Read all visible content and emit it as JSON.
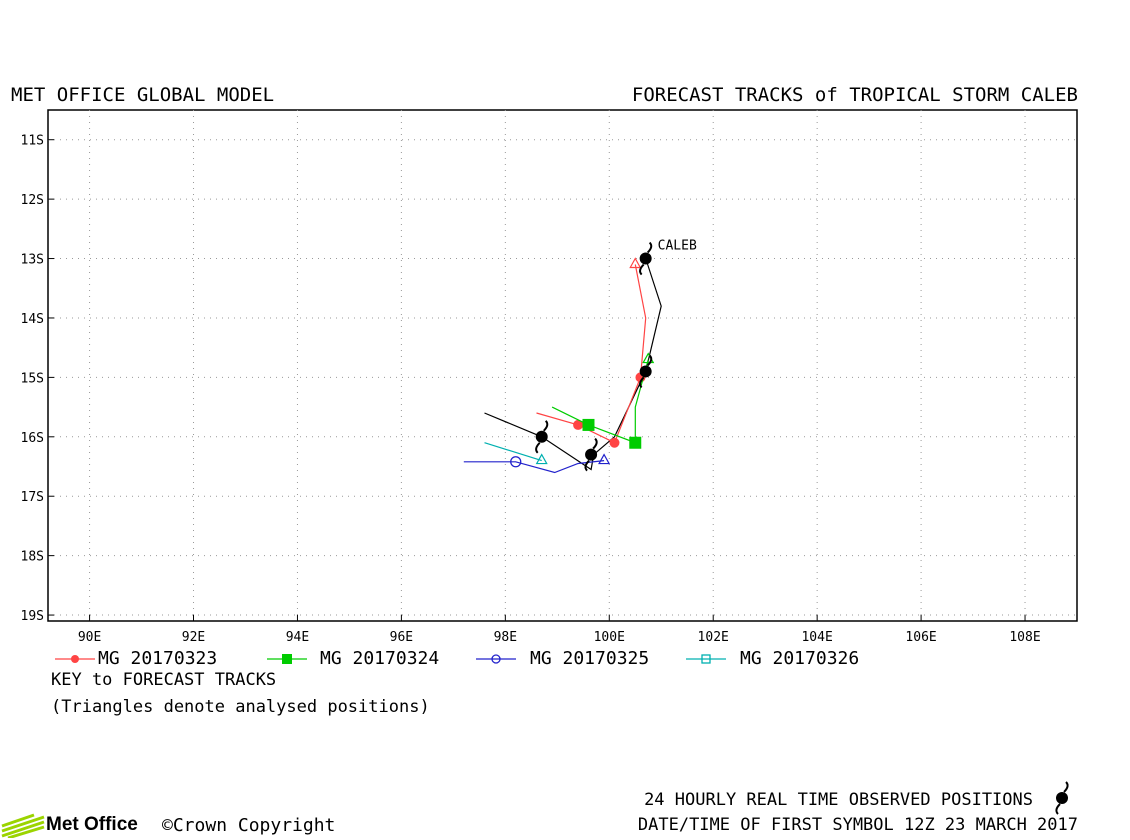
{
  "header": {
    "left": "MET OFFICE GLOBAL MODEL",
    "right": "FORECAST TRACKS of TROPICAL STORM CALEB"
  },
  "map": {
    "lat_labels": [
      "11S",
      "12S",
      "13S",
      "14S",
      "15S",
      "16S",
      "17S",
      "18S",
      "19S"
    ],
    "lon_labels": [
      "90E",
      "92E",
      "94E",
      "96E",
      "98E",
      "100E",
      "102E",
      "104E",
      "106E",
      "108E"
    ],
    "lon_range": [
      89.2,
      109.0
    ],
    "lat_range": [
      -19.1,
      -10.5
    ],
    "grid": true,
    "storm_label": "CALEB",
    "observed_track": [
      [
        100.7,
        -13.0
      ],
      [
        101.0,
        -13.8
      ],
      [
        100.7,
        -14.9
      ],
      [
        100.1,
        -16.0
      ],
      [
        99.7,
        -16.3
      ],
      [
        99.65,
        -16.55
      ],
      [
        98.7,
        -16.0
      ],
      [
        97.6,
        -15.6
      ]
    ],
    "observed_symbols": [
      [
        100.7,
        -13.0
      ],
      [
        100.7,
        -14.9
      ],
      [
        99.65,
        -16.3
      ],
      [
        98.7,
        -16.0
      ]
    ],
    "colors": {
      "MG20170323": "#ff4444",
      "MG20170324": "#00cc00",
      "MG20170325": "#2222cc",
      "MG20170326": "#00b0b0",
      "observed": "#000000"
    },
    "tracks": [
      {
        "id": "MG20170323",
        "points": [
          [
            100.5,
            -13.1
          ],
          [
            100.7,
            -14.0
          ],
          [
            100.6,
            -15.0
          ],
          [
            100.1,
            -16.1
          ],
          [
            99.4,
            -15.8
          ],
          [
            98.6,
            -15.6
          ]
        ],
        "symbols": [
          [
            100.6,
            -15.0
          ],
          [
            100.1,
            -16.1
          ],
          [
            99.4,
            -15.8
          ]
        ],
        "triangle": [
          100.5,
          -13.1
        ]
      },
      {
        "id": "MG20170324",
        "points": [
          [
            100.75,
            -14.7
          ],
          [
            100.5,
            -15.5
          ],
          [
            100.5,
            -16.1
          ],
          [
            99.6,
            -15.8
          ],
          [
            98.9,
            -15.5
          ]
        ],
        "symbols": [
          [
            100.5,
            -16.1
          ],
          [
            99.6,
            -15.8
          ]
        ],
        "triangle": [
          100.75,
          -14.7
        ]
      },
      {
        "id": "MG20170325",
        "points": [
          [
            99.9,
            -16.4
          ],
          [
            99.4,
            -16.45
          ],
          [
            98.95,
            -16.6
          ],
          [
            98.2,
            -16.42
          ],
          [
            97.2,
            -16.42
          ]
        ],
        "symbols": [
          [
            98.2,
            -16.42
          ]
        ],
        "triangle": [
          99.9,
          -16.4
        ]
      },
      {
        "id": "MG20170326",
        "points": [
          [
            98.7,
            -16.4
          ],
          [
            97.6,
            -16.1
          ]
        ],
        "symbols": [],
        "triangle": [
          98.7,
          -16.4
        ]
      }
    ]
  },
  "legend": [
    {
      "label": "MG 20170323",
      "color": "#ff4444",
      "marker": "filled-circle"
    },
    {
      "label": "MG 20170324",
      "color": "#00cc00",
      "marker": "filled-square"
    },
    {
      "label": "MG 20170325",
      "color": "#2222cc",
      "marker": "open-circle"
    },
    {
      "label": "MG 20170326",
      "color": "#00b0b0",
      "marker": "open-square"
    }
  ],
  "key": {
    "title": "KEY to FORECAST TRACKS",
    "note": "(Triangles denote analysed positions)"
  },
  "footer": {
    "observed": "24 HOURLY REAL TIME OBSERVED POSITIONS",
    "date": "DATE/TIME OF FIRST SYMBOL 12Z 23 MARCH 2017",
    "logo": "Met Office",
    "copyright": "Crown Copyright",
    "copyright_symbol": "©"
  }
}
